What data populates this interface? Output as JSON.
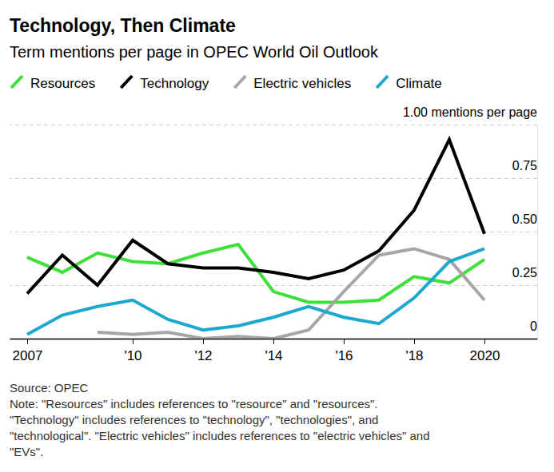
{
  "chart_data": {
    "type": "line",
    "title": "Technology, Then Climate",
    "subtitle": "Term mentions per page in OPEC World Oil Outlook",
    "x": [
      2007,
      2008,
      2009,
      2010,
      2011,
      2012,
      2013,
      2014,
      2015,
      2016,
      2017,
      2018,
      2019,
      2020
    ],
    "series": [
      {
        "name": "Resources",
        "color": "#3ee03a",
        "values": [
          0.38,
          0.31,
          0.4,
          0.36,
          0.35,
          0.4,
          0.44,
          0.22,
          0.17,
          0.17,
          0.18,
          0.29,
          0.26,
          0.37
        ]
      },
      {
        "name": "Technology",
        "color": "#000000",
        "values": [
          0.21,
          0.39,
          0.25,
          0.46,
          0.35,
          0.33,
          0.33,
          0.31,
          0.28,
          0.32,
          0.41,
          0.6,
          0.93,
          0.49
        ]
      },
      {
        "name": "Electric vehicles",
        "color": "#a6a6a6",
        "values": [
          null,
          null,
          0.03,
          0.02,
          0.03,
          0.0,
          0.01,
          0.0,
          0.04,
          0.22,
          0.39,
          0.42,
          0.37,
          0.18
        ]
      },
      {
        "name": "Climate",
        "color": "#1da8d0",
        "values": [
          0.02,
          0.11,
          0.15,
          0.18,
          0.09,
          0.04,
          0.06,
          0.1,
          0.15,
          0.1,
          0.07,
          0.19,
          0.36,
          0.42
        ]
      }
    ],
    "xlim": [
      2006.5,
      2021.5
    ],
    "xticks": [
      {
        "value": 2007,
        "label": "2007"
      },
      {
        "value": 2010,
        "label": "'10"
      },
      {
        "value": 2012,
        "label": "'12"
      },
      {
        "value": 2014,
        "label": "'14"
      },
      {
        "value": 2016,
        "label": "'16"
      },
      {
        "value": 2018,
        "label": "'18"
      },
      {
        "value": 2020,
        "label": "2020"
      }
    ],
    "ylim": [
      0,
      1
    ],
    "yticks": [
      0,
      0.25,
      {
        "value": 0.5,
        "label": "0.50"
      },
      0.75,
      {
        "value": 1,
        "label": "1.00 mentions per page"
      }
    ],
    "grid": true,
    "legend": "top",
    "source": "Source: OPEC",
    "notes": [
      "Note: \"Resources\" includes references to \"resource\" and \"resources\".",
      "\"Technology\" includes references to \"technology\", \"technologies\", and",
      "\"technological\". \"Electric vehicles\" includes references to \"electric vehicles\" and",
      "\"EVs\"."
    ]
  }
}
